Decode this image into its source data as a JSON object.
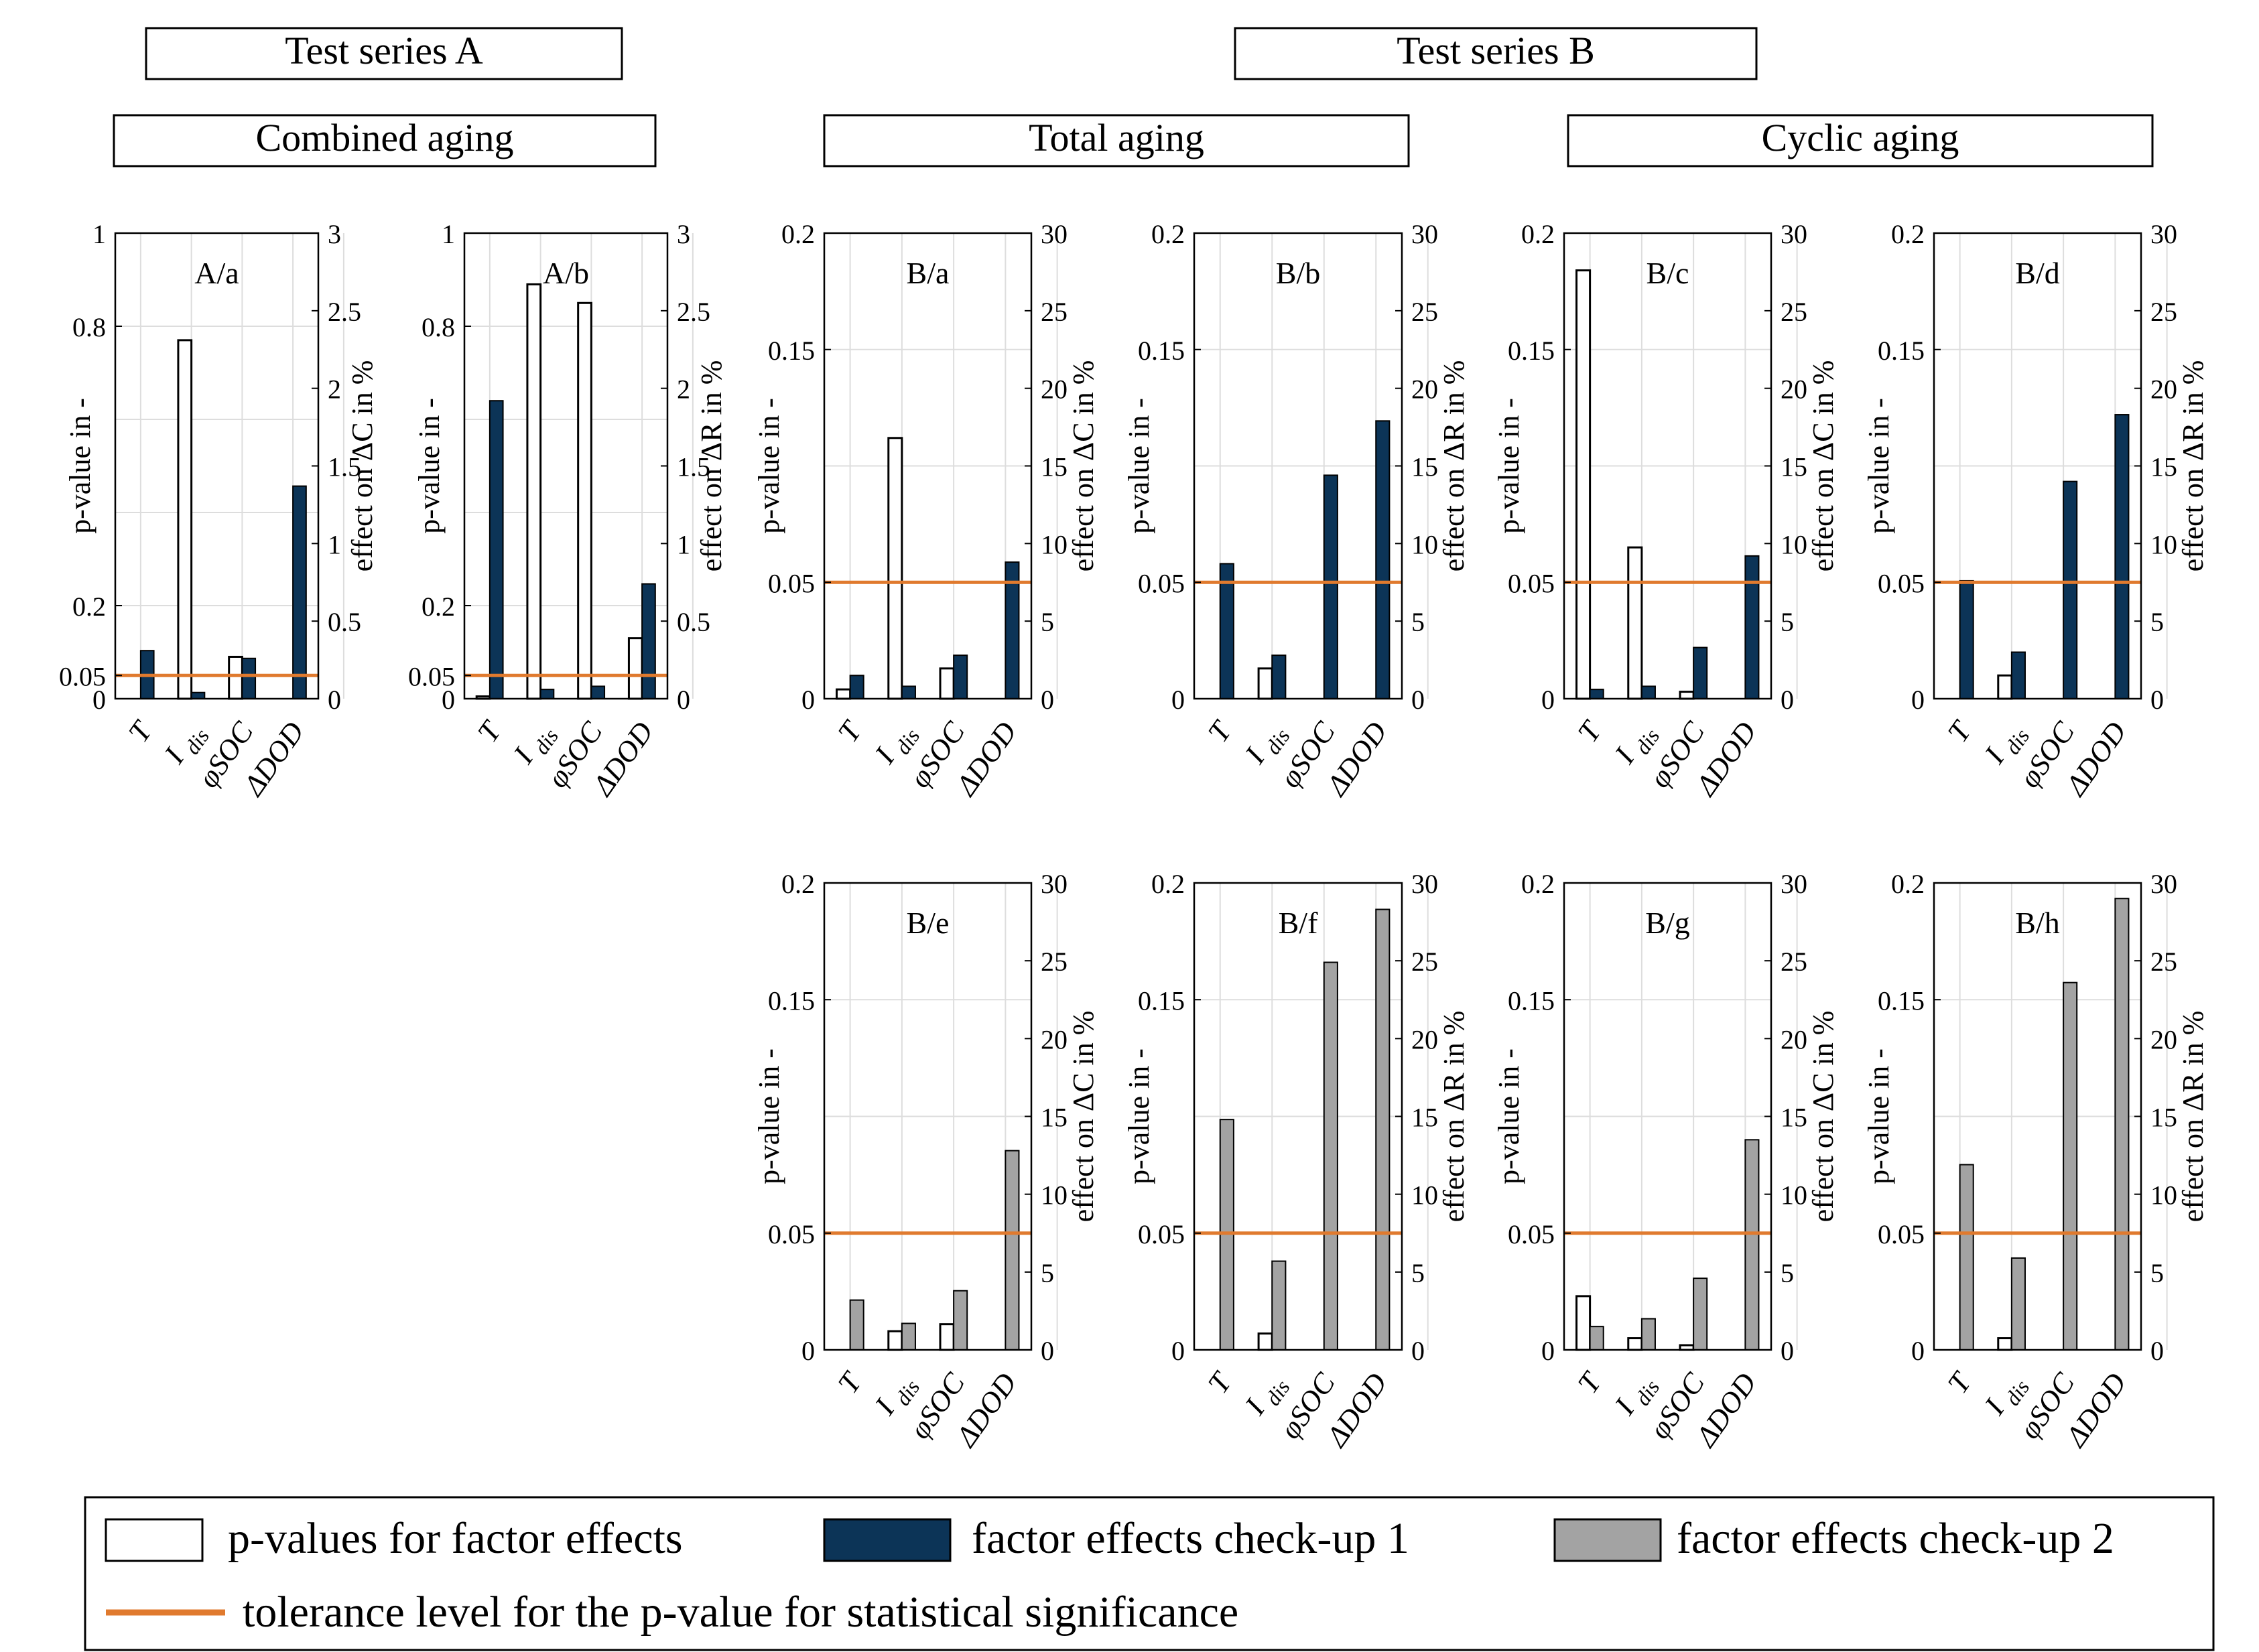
{
  "colors": {
    "pvalue_fill": "#ffffff",
    "checkup1": "#0c3457",
    "checkup2": "#a3a3a3",
    "tolerance": "#e07a2e",
    "grid": "#dddddd"
  },
  "headers": {
    "series_a": "Test series A",
    "series_b": "Test series B",
    "combined": "Combined aging",
    "total": "Total aging",
    "cyclic": "Cyclic aging"
  },
  "legend": {
    "pvalues": "p-values for factor effects",
    "checkup1": "factor effects check-up 1",
    "checkup2": "factor effects check-up 2",
    "tolerance": "tolerance level for the p-value for statistical significance"
  },
  "chart_data": [
    {
      "id": "A/a",
      "type": "bar",
      "title": "A/a",
      "scale": "A",
      "ylabel_left": "p-value in -",
      "ylabel_right": "effect on ΔC in %",
      "left_ticks": [
        "0",
        "0.05",
        "0.2",
        "0.8",
        "1"
      ],
      "right_ticks": [
        "0",
        "0.5",
        "1",
        "1.5",
        "2",
        "2.5",
        "3"
      ],
      "left_ylim": [
        0,
        1
      ],
      "right_ylim": [
        0,
        3
      ],
      "tolerance": 0.05,
      "categories": [
        "T",
        "I_dis",
        "φSOC",
        "ΔDOD"
      ],
      "p_values": [
        0.0,
        0.77,
        0.09,
        0.0
      ],
      "effect_series": "check-up 1",
      "effects": [
        0.31,
        0.04,
        0.26,
        1.37
      ]
    },
    {
      "id": "A/b",
      "type": "bar",
      "title": "A/b",
      "scale": "A",
      "ylabel_left": "p-value in -",
      "ylabel_right": "effect on ΔR in %",
      "left_ticks": [
        "0",
        "0.05",
        "0.2",
        "0.8",
        "1"
      ],
      "right_ticks": [
        "0",
        "0.5",
        "1",
        "1.5",
        "2",
        "2.5",
        "3"
      ],
      "left_ylim": [
        0,
        1
      ],
      "right_ylim": [
        0,
        3
      ],
      "tolerance": 0.05,
      "categories": [
        "T",
        "I_dis",
        "φSOC",
        "ΔDOD"
      ],
      "p_values": [
        0.005,
        0.89,
        0.85,
        0.13
      ],
      "effect_series": "check-up 1",
      "effects": [
        1.92,
        0.06,
        0.08,
        0.74
      ]
    },
    {
      "id": "B/a",
      "type": "bar",
      "title": "B/a",
      "scale": "B",
      "ylabel_left": "p-value in -",
      "ylabel_right": "effect on ΔC in %",
      "left_ticks": [
        "0",
        "0.05",
        "0.15",
        "0.2"
      ],
      "right_ticks": [
        "0",
        "5",
        "10",
        "15",
        "20",
        "25",
        "30"
      ],
      "left_ylim": [
        0,
        0.2
      ],
      "right_ylim": [
        0,
        30
      ],
      "tolerance": 0.05,
      "categories": [
        "T",
        "I_dis",
        "φSOC",
        "ΔDOD"
      ],
      "p_values": [
        0.004,
        0.112,
        0.013,
        0.0
      ],
      "effect_series": "check-up 1",
      "effects": [
        1.5,
        0.8,
        2.8,
        8.8
      ]
    },
    {
      "id": "B/b",
      "type": "bar",
      "title": "B/b",
      "scale": "B",
      "ylabel_left": "p-value in -",
      "ylabel_right": "effect on ΔR in %",
      "left_ticks": [
        "0",
        "0.05",
        "0.15",
        "0.2"
      ],
      "right_ticks": [
        "0",
        "5",
        "10",
        "15",
        "20",
        "25",
        "30"
      ],
      "left_ylim": [
        0,
        0.2
      ],
      "right_ylim": [
        0,
        30
      ],
      "tolerance": 0.05,
      "categories": [
        "T",
        "I_dis",
        "φSOC",
        "ΔDOD"
      ],
      "p_values": [
        0.0,
        0.013,
        0.0,
        0.0
      ],
      "effect_series": "check-up 1",
      "effects": [
        8.7,
        2.8,
        14.4,
        17.9
      ]
    },
    {
      "id": "B/c",
      "type": "bar",
      "title": "B/c",
      "scale": "B",
      "ylabel_left": "p-value in -",
      "ylabel_right": "effect on ΔC in %",
      "left_ticks": [
        "0",
        "0.05",
        "0.15",
        "0.2"
      ],
      "right_ticks": [
        "0",
        "5",
        "10",
        "15",
        "20",
        "25",
        "30"
      ],
      "left_ylim": [
        0,
        0.2
      ],
      "right_ylim": [
        0,
        30
      ],
      "tolerance": 0.05,
      "categories": [
        "T",
        "I_dis",
        "φSOC",
        "ΔDOD"
      ],
      "p_values": [
        0.184,
        0.065,
        0.003,
        0.0
      ],
      "effect_series": "check-up 1",
      "effects": [
        0.6,
        0.8,
        3.3,
        9.2
      ]
    },
    {
      "id": "B/d",
      "type": "bar",
      "title": "B/d",
      "scale": "B",
      "ylabel_left": "p-value in -",
      "ylabel_right": "effect on ΔR in %",
      "left_ticks": [
        "0",
        "0.05",
        "0.15",
        "0.2"
      ],
      "right_ticks": [
        "0",
        "5",
        "10",
        "15",
        "20",
        "25",
        "30"
      ],
      "left_ylim": [
        0,
        0.2
      ],
      "right_ylim": [
        0,
        30
      ],
      "tolerance": 0.05,
      "categories": [
        "T",
        "I_dis",
        "φSOC",
        "ΔDOD"
      ],
      "p_values": [
        0.0,
        0.01,
        0.0,
        0.0
      ],
      "effect_series": "check-up 1",
      "effects": [
        7.6,
        3.0,
        14.0,
        18.3
      ]
    },
    {
      "id": "B/e",
      "type": "bar",
      "title": "B/e",
      "scale": "B",
      "ylabel_left": "p-value in -",
      "ylabel_right": "effect on ΔC in %",
      "left_ticks": [
        "0",
        "0.05",
        "0.15",
        "0.2"
      ],
      "right_ticks": [
        "0",
        "5",
        "10",
        "15",
        "20",
        "25",
        "30"
      ],
      "left_ylim": [
        0,
        0.2
      ],
      "right_ylim": [
        0,
        30
      ],
      "tolerance": 0.05,
      "categories": [
        "T",
        "I_dis",
        "φSOC",
        "ΔDOD"
      ],
      "p_values": [
        0.0,
        0.008,
        0.011,
        0.0
      ],
      "effect_series": "check-up 2",
      "effects": [
        3.2,
        1.7,
        3.8,
        12.8
      ]
    },
    {
      "id": "B/f",
      "type": "bar",
      "title": "B/f",
      "scale": "B",
      "ylabel_left": "p-value in -",
      "ylabel_right": "effect on ΔR in %",
      "left_ticks": [
        "0",
        "0.05",
        "0.15",
        "0.2"
      ],
      "right_ticks": [
        "0",
        "5",
        "10",
        "15",
        "20",
        "25",
        "30"
      ],
      "left_ylim": [
        0,
        0.2
      ],
      "right_ylim": [
        0,
        30
      ],
      "tolerance": 0.05,
      "categories": [
        "T",
        "I_dis",
        "φSOC",
        "ΔDOD"
      ],
      "p_values": [
        0.0,
        0.007,
        0.0,
        0.0
      ],
      "effect_series": "check-up 2",
      "effects": [
        14.8,
        5.7,
        24.9,
        28.3
      ]
    },
    {
      "id": "B/g",
      "type": "bar",
      "title": "B/g",
      "scale": "B",
      "ylabel_left": "p-value in -",
      "ylabel_right": "effect on ΔC in %",
      "left_ticks": [
        "0",
        "0.05",
        "0.15",
        "0.2"
      ],
      "right_ticks": [
        "0",
        "5",
        "10",
        "15",
        "20",
        "25",
        "30"
      ],
      "left_ylim": [
        0,
        0.2
      ],
      "right_ylim": [
        0,
        30
      ],
      "tolerance": 0.05,
      "categories": [
        "T",
        "I_dis",
        "φSOC",
        "ΔDOD"
      ],
      "p_values": [
        0.023,
        0.005,
        0.002,
        0.0
      ],
      "effect_series": "check-up 2",
      "effects": [
        1.5,
        2.0,
        4.6,
        13.5
      ]
    },
    {
      "id": "B/h",
      "type": "bar",
      "title": "B/h",
      "scale": "B",
      "ylabel_left": "p-value in -",
      "ylabel_right": "effect on ΔR in %",
      "left_ticks": [
        "0",
        "0.05",
        "0.15",
        "0.2"
      ],
      "right_ticks": [
        "0",
        "5",
        "10",
        "15",
        "20",
        "25",
        "30"
      ],
      "left_ylim": [
        0,
        0.2
      ],
      "right_ylim": [
        0,
        30
      ],
      "tolerance": 0.05,
      "categories": [
        "T",
        "I_dis",
        "φSOC",
        "ΔDOD"
      ],
      "p_values": [
        0.0,
        0.005,
        0.0,
        0.0
      ],
      "effect_series": "check-up 2",
      "effects": [
        11.9,
        5.9,
        23.6,
        29.0
      ]
    }
  ]
}
